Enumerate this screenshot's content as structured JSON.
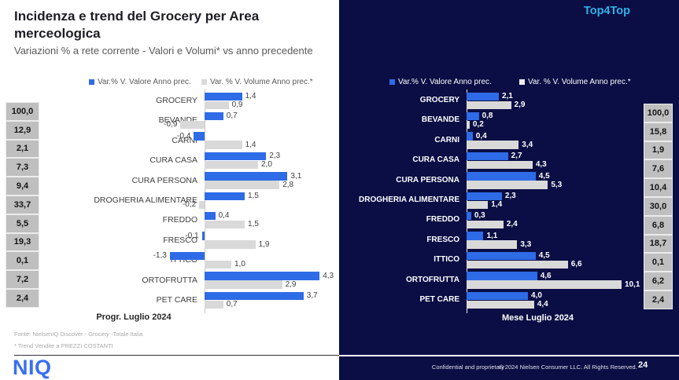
{
  "slide": {
    "title": "Incidenza e trend del Grocery per Area merceologica",
    "subtitle": "Variazioni % a rete corrente - Valori e Volumi* vs anno precedente"
  },
  "colors": {
    "value_bar_blue": "#2e6be6",
    "volume_bar_gray": "#d9d9d9",
    "dark_background": "#0a0e44",
    "accent_cyan": "#2eb3e8",
    "incidence_box_gray": "#bfbfbf",
    "niq_logo_blue": "#3a6ff2"
  },
  "chart_data": [
    {
      "id": "progressive",
      "type": "bar",
      "orientation": "horizontal",
      "axis_caption": "Progr. Luglio 2024",
      "units": "percent variation vs previous year",
      "categories": [
        "GROCERY",
        "BEVANDE",
        "CARNI",
        "CURA CASA",
        "CURA PERSONA",
        "DROGHERIA ALIMENTARE",
        "FREDDO",
        "FRESCO",
        "ITTICO",
        "ORTOFRUTTA",
        "PET CARE"
      ],
      "series": [
        {
          "name": "Var.% V. Valore Anno prec.",
          "color": "#2e6be6",
          "values": [
            1.4,
            0.7,
            -0.4,
            2.3,
            3.1,
            1.5,
            0.4,
            -0.1,
            -1.3,
            4.3,
            3.7
          ]
        },
        {
          "name": "Var. % V. Volume Anno prec.*",
          "color": "#d9d9d9",
          "values": [
            0.9,
            -0.9,
            1.4,
            2.0,
            2.8,
            -0.2,
            1.5,
            1.9,
            1.0,
            2.9,
            0.7
          ]
        }
      ],
      "incidence_column": [
        100.0,
        12.9,
        2.1,
        7.3,
        9.4,
        33.7,
        5.5,
        19.3,
        0.1,
        7.2,
        2.4
      ],
      "legend_position": "top"
    },
    {
      "id": "month",
      "type": "bar",
      "orientation": "horizontal",
      "title": "Top4Top",
      "axis_caption": "Mese Luglio 2024",
      "units": "percent variation vs previous year",
      "categories": [
        "GROCERY",
        "BEVANDE",
        "CARNI",
        "CURA CASA",
        "CURA PERSONA",
        "DROGHERIA ALIMENTARE",
        "FREDDO",
        "FRESCO",
        "ITTICO",
        "ORTOFRUTTA",
        "PET CARE"
      ],
      "series": [
        {
          "name": "Var.% V. Valore Anno prec.",
          "color": "#2e6be6",
          "values": [
            2.1,
            0.8,
            0.4,
            2.7,
            4.5,
            2.3,
            0.3,
            1.1,
            4.5,
            4.6,
            4.0
          ]
        },
        {
          "name": "Var. % V. Volume Anno prec.*",
          "color": "#d9d9d9",
          "values": [
            2.9,
            0.2,
            3.4,
            4.3,
            5.3,
            1.4,
            2.4,
            3.3,
            6.6,
            10.1,
            4.4
          ]
        }
      ],
      "incidence_column": [
        100.0,
        15.8,
        1.9,
        7.6,
        10.4,
        30.0,
        6.8,
        18.7,
        0.1,
        6.2,
        2.4
      ],
      "legend_position": "top"
    }
  ],
  "footer_left": {
    "source": "Fonte: NielsenIQ Discover - Grocery -Totale Italia",
    "note": "* Trend Vendite a PREZZI COSTANTI",
    "logo": "NIQ"
  },
  "footer_right": {
    "confidential": "Confidential and proprietary",
    "copyright": "© 2024 Nielsen Consumer LLC. All Rights Reserved.",
    "page": "24"
  }
}
